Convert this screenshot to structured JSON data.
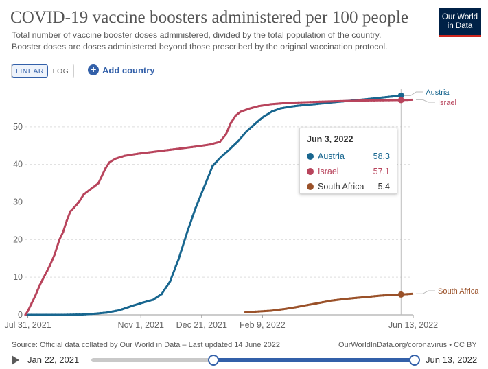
{
  "header": {
    "title": "COVID-19 vaccine boosters administered per 100 people",
    "subtitle_line1": "Total number of vaccine booster doses administered, divided by the total population of the country.",
    "subtitle_line2": "Booster doses are doses administered beyond those prescribed by the original vaccination protocol.",
    "logo_line1": "Our World",
    "logo_line2": "in Data"
  },
  "controls": {
    "linear_label": "LINEAR",
    "log_label": "LOG",
    "add_country_label": "Add country",
    "add_icon": "+"
  },
  "chart_data": {
    "type": "line",
    "title": "COVID-19 vaccine boosters administered per 100 people",
    "xlabel": "",
    "ylabel": "",
    "ylim": [
      0,
      60
    ],
    "yticks": [
      0,
      10,
      20,
      30,
      40,
      50
    ],
    "xticks": [
      {
        "label": "Jul 31, 2021",
        "day": 0
      },
      {
        "label": "Nov 1, 2021",
        "day": 93
      },
      {
        "label": "Dec 21, 2021",
        "day": 143
      },
      {
        "label": "Feb 9, 2022",
        "day": 193
      },
      {
        "label": "Jun 13, 2022",
        "day": 317
      }
    ],
    "x_unit": "days since Jul 31, 2021",
    "xlim": [
      -2,
      317
    ],
    "hover_day": 307,
    "grid": true,
    "legend": "right-edge labels",
    "series": [
      {
        "name": "Austria",
        "color": "#18668f",
        "points": [
          [
            -2,
            0
          ],
          [
            5,
            0
          ],
          [
            15,
            0
          ],
          [
            30,
            0
          ],
          [
            45,
            0.1
          ],
          [
            55,
            0.3
          ],
          [
            65,
            0.6
          ],
          [
            75,
            1.2
          ],
          [
            85,
            2.3
          ],
          [
            95,
            3.3
          ],
          [
            103,
            4
          ],
          [
            110,
            5.5
          ],
          [
            117,
            8.9
          ],
          [
            124,
            14.8
          ],
          [
            131,
            21.9
          ],
          [
            138,
            28.4
          ],
          [
            145,
            34
          ],
          [
            152,
            39.6
          ],
          [
            159,
            42
          ],
          [
            166,
            44
          ],
          [
            173,
            46.2
          ],
          [
            180,
            48.8
          ],
          [
            187,
            50.8
          ],
          [
            194,
            52.7
          ],
          [
            201,
            54.1
          ],
          [
            208,
            54.9
          ],
          [
            215,
            55.3
          ],
          [
            222,
            55.6
          ],
          [
            236,
            56
          ],
          [
            250,
            56.5
          ],
          [
            264,
            56.9
          ],
          [
            278,
            57.3
          ],
          [
            292,
            57.8
          ],
          [
            307,
            58.3
          ]
        ]
      },
      {
        "name": "Israel",
        "color": "#b8445c",
        "points": [
          [
            -2,
            0
          ],
          [
            0,
            1
          ],
          [
            3,
            3
          ],
          [
            6,
            5
          ],
          [
            10,
            8
          ],
          [
            14,
            10.5
          ],
          [
            18,
            13
          ],
          [
            22,
            16
          ],
          [
            26,
            20
          ],
          [
            29,
            22
          ],
          [
            32,
            25
          ],
          [
            35,
            27.5
          ],
          [
            38,
            28.5
          ],
          [
            42,
            30
          ],
          [
            46,
            32
          ],
          [
            50,
            33
          ],
          [
            54,
            34
          ],
          [
            58,
            35
          ],
          [
            61,
            37
          ],
          [
            64,
            39
          ],
          [
            67,
            40.5
          ],
          [
            72,
            41.5
          ],
          [
            80,
            42.3
          ],
          [
            90,
            42.8
          ],
          [
            100,
            43.2
          ],
          [
            110,
            43.6
          ],
          [
            120,
            44
          ],
          [
            130,
            44.4
          ],
          [
            140,
            44.8
          ],
          [
            150,
            45.3
          ],
          [
            158,
            46
          ],
          [
            163,
            48
          ],
          [
            167,
            51
          ],
          [
            171,
            53
          ],
          [
            175,
            54
          ],
          [
            182,
            54.8
          ],
          [
            190,
            55.5
          ],
          [
            200,
            56
          ],
          [
            215,
            56.4
          ],
          [
            235,
            56.6
          ],
          [
            255,
            56.8
          ],
          [
            280,
            57
          ],
          [
            307,
            57.1
          ],
          [
            317,
            57.2
          ]
        ]
      },
      {
        "name": "South Africa",
        "color": "#9a5129",
        "points": [
          [
            179,
            0.7
          ],
          [
            190,
            0.9
          ],
          [
            200,
            1.1
          ],
          [
            210,
            1.5
          ],
          [
            220,
            2
          ],
          [
            230,
            2.6
          ],
          [
            240,
            3.2
          ],
          [
            250,
            3.8
          ],
          [
            260,
            4.2
          ],
          [
            270,
            4.5
          ],
          [
            280,
            4.8
          ],
          [
            290,
            5.1
          ],
          [
            300,
            5.3
          ],
          [
            307,
            5.4
          ],
          [
            317,
            5.6
          ]
        ]
      }
    ]
  },
  "tooltip": {
    "date": "Jun 3, 2022",
    "rows": [
      {
        "name": "Austria",
        "value": "58.3",
        "color": "#18668f"
      },
      {
        "name": "Israel",
        "value": "57.1",
        "color": "#b8445c"
      },
      {
        "name": "South Africa",
        "value": "5.4",
        "color": "#9a5129"
      }
    ]
  },
  "footer": {
    "source": "Source: Official data collated by Our World in Data – Last updated 14 June 2022",
    "license": "OurWorldInData.org/coronavirus • CC BY"
  },
  "timeline": {
    "start_label": "Jan 22, 2021",
    "end_label": "Jun 13, 2022"
  }
}
